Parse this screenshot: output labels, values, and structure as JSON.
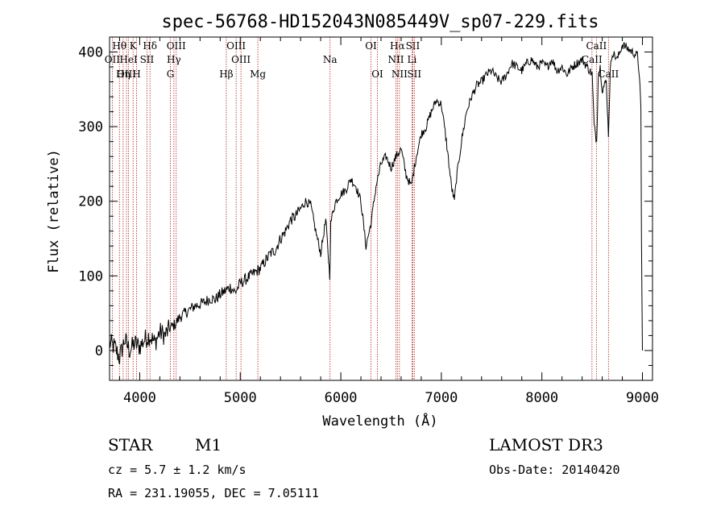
{
  "chart_data": {
    "type": "line",
    "title": "spec-56768-HD152043N085449V_sp07-229.fits",
    "xlabel": "Wavelength (Å)",
    "ylabel": "Flux (relative)",
    "xlim": [
      3700,
      9100
    ],
    "ylim": [
      -40,
      420
    ],
    "xticks": [
      4000,
      5000,
      6000,
      7000,
      8000,
      9000
    ],
    "yticks": [
      0,
      100,
      200,
      300,
      400
    ],
    "colors": {
      "spectrum": "#000000",
      "lines": "#b22222",
      "axes": "#000000"
    },
    "series": [
      {
        "name": "spectrum",
        "x": [
          3700,
          3750,
          3800,
          3850,
          3900,
          3950,
          4000,
          4050,
          4100,
          4150,
          4200,
          4250,
          4300,
          4350,
          4400,
          4450,
          4500,
          4550,
          4600,
          4650,
          4700,
          4750,
          4800,
          4850,
          4900,
          4950,
          5000,
          5050,
          5100,
          5150,
          5200,
          5250,
          5300,
          5350,
          5400,
          5450,
          5500,
          5550,
          5600,
          5650,
          5700,
          5750,
          5800,
          5850,
          5890,
          5900,
          5920,
          5950,
          6000,
          6050,
          6100,
          6150,
          6200,
          6250,
          6300,
          6350,
          6400,
          6450,
          6500,
          6550,
          6600,
          6650,
          6700,
          6750,
          6800,
          6850,
          6900,
          6950,
          7000,
          7050,
          7100,
          7130,
          7150,
          7200,
          7250,
          7300,
          7350,
          7400,
          7450,
          7500,
          7550,
          7600,
          7650,
          7700,
          7750,
          7800,
          7850,
          7900,
          7950,
          8000,
          8050,
          8100,
          8150,
          8200,
          8250,
          8300,
          8350,
          8400,
          8450,
          8500,
          8520,
          8545,
          8560,
          8580,
          8600,
          8640,
          8662,
          8680,
          8700,
          8750,
          8800,
          8850,
          8900,
          8950,
          8970,
          8985,
          8990,
          9000
        ],
        "y": [
          10,
          5,
          -10,
          15,
          0,
          10,
          5,
          15,
          20,
          10,
          25,
          20,
          30,
          35,
          45,
          50,
          55,
          60,
          62,
          65,
          70,
          68,
          75,
          80,
          85,
          78,
          90,
          95,
          100,
          105,
          110,
          120,
          130,
          135,
          150,
          160,
          175,
          180,
          190,
          200,
          195,
          160,
          130,
          175,
          100,
          170,
          185,
          200,
          210,
          215,
          230,
          220,
          200,
          140,
          170,
          220,
          250,
          260,
          245,
          260,
          270,
          235,
          220,
          260,
          290,
          300,
          320,
          335,
          330,
          280,
          220,
          200,
          230,
          280,
          320,
          340,
          355,
          360,
          370,
          375,
          365,
          360,
          370,
          385,
          380,
          375,
          385,
          390,
          380,
          385,
          380,
          390,
          375,
          380,
          370,
          380,
          385,
          390,
          380,
          370,
          300,
          280,
          370,
          380,
          350,
          360,
          290,
          375,
          400,
          390,
          410,
          405,
          400,
          395,
          370,
          320,
          150,
          0
        ]
      }
    ],
    "lines": [
      {
        "name": "Hθ",
        "wave": 3798,
        "row": 1
      },
      {
        "name": "CaII K",
        "wave": 3934,
        "row": 1,
        "label": "K"
      },
      {
        "name": "Hδ",
        "wave": 4102,
        "row": 1
      },
      {
        "name": "OIII",
        "wave": 4363,
        "row": 1
      },
      {
        "name": "OIII",
        "wave": 4959,
        "row": 1
      },
      {
        "name": "OI",
        "wave": 6300,
        "row": 1
      },
      {
        "name": "Hα",
        "wave": 6563,
        "row": 1
      },
      {
        "name": "SII",
        "wave": 6716,
        "row": 1
      },
      {
        "name": "CaII",
        "wave": 8542,
        "row": 1
      },
      {
        "name": "OII",
        "wave": 3727,
        "row": 2
      },
      {
        "name": "HeI",
        "wave": 3889,
        "row": 2
      },
      {
        "name": "SII",
        "wave": 4072,
        "row": 2
      },
      {
        "name": "Hγ",
        "wave": 4340,
        "row": 2
      },
      {
        "name": "OIII",
        "wave": 5007,
        "row": 2
      },
      {
        "name": "Na",
        "wave": 5893,
        "row": 2
      },
      {
        "name": "NII",
        "wave": 6548,
        "row": 2
      },
      {
        "name": "Li",
        "wave": 6708,
        "row": 2
      },
      {
        "name": "CaII",
        "wave": 8498,
        "row": 2
      },
      {
        "name": "OIII",
        "wave": 3869,
        "row": 3
      },
      {
        "name": "Hη",
        "wave": 3835,
        "row": 3
      },
      {
        "name": "CaII H",
        "wave": 3969,
        "row": 3,
        "label": "H"
      },
      {
        "name": "G",
        "wave": 4305,
        "row": 3
      },
      {
        "name": "Hβ",
        "wave": 4861,
        "row": 3
      },
      {
        "name": "Mg",
        "wave": 5175,
        "row": 3
      },
      {
        "name": "OI",
        "wave": 6364,
        "row": 3
      },
      {
        "name": "NII",
        "wave": 6583,
        "row": 3
      },
      {
        "name": "SII",
        "wave": 6731,
        "row": 3
      },
      {
        "name": "CaII",
        "wave": 8662,
        "row": 3
      }
    ]
  },
  "info": {
    "class": "STAR",
    "subclass": "M1",
    "survey": "LAMOST DR3",
    "redshift": "cz = 5.7 ± 1.2 km/s",
    "obs_date": "Obs-Date: 20140420",
    "coords": "RA = 231.19055, DEC =   7.05111"
  }
}
